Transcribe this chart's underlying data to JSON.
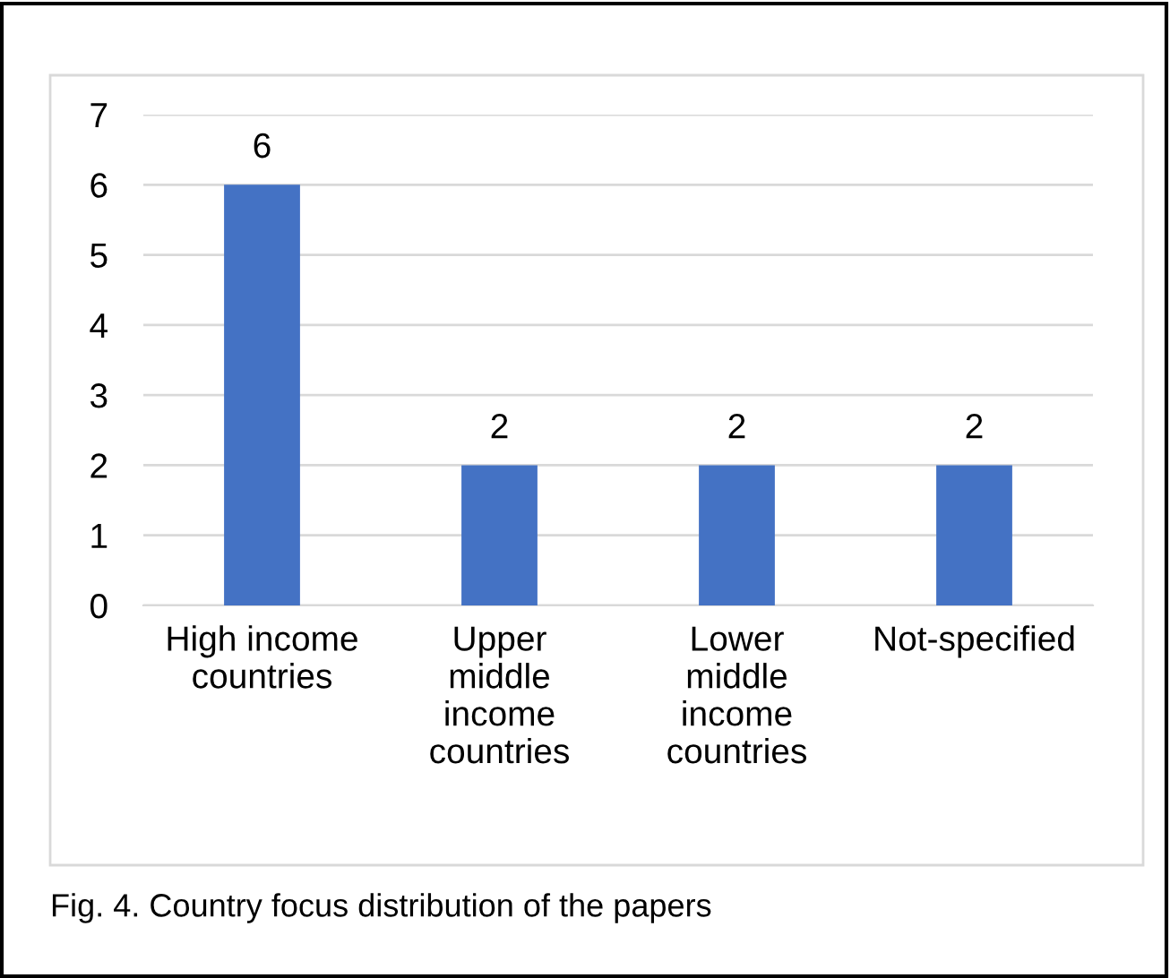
{
  "chart_data": {
    "type": "bar",
    "categories": [
      "High income\ncountries",
      "Upper\nmiddle\nincome\ncountries",
      "Lower\nmiddle\nincome\ncountries",
      "Not-specified"
    ],
    "values": [
      6,
      2,
      2,
      2
    ],
    "color": "#4472c4",
    "ylim": [
      0,
      7
    ],
    "yticks": [
      0,
      1,
      2,
      3,
      4,
      5,
      6,
      7
    ],
    "grid": "y",
    "data_labels": true,
    "annotations": [
      "Fig. 4. Country focus distribution of the papers"
    ]
  }
}
